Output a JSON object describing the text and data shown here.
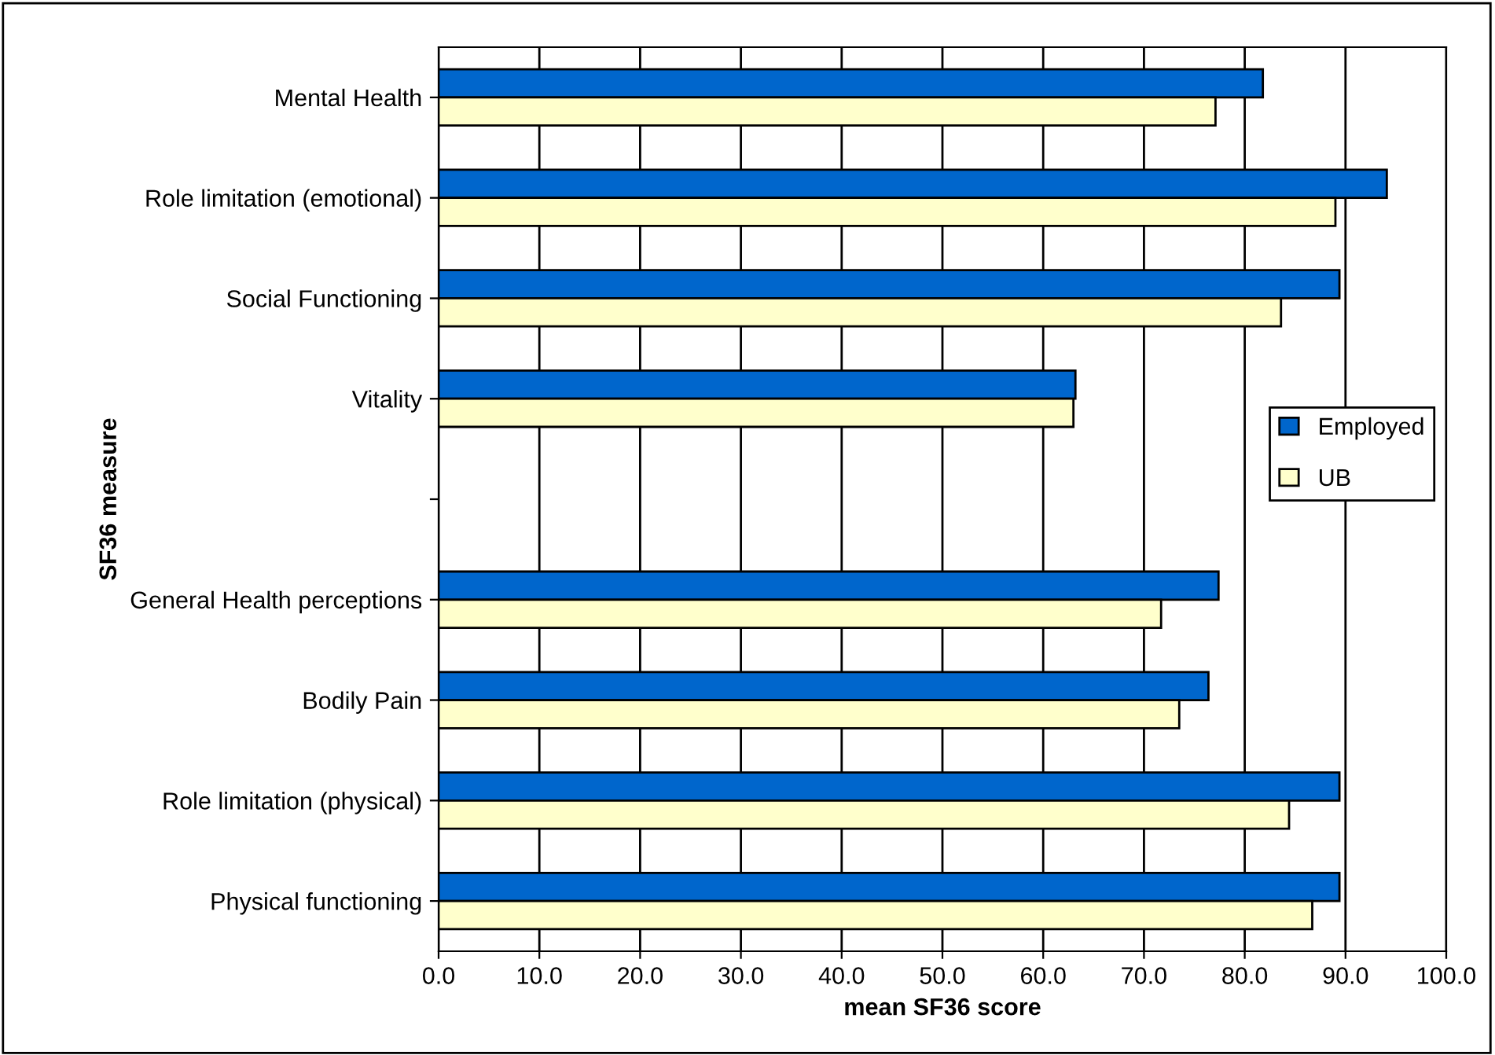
{
  "chart_data": {
    "type": "bar",
    "orientation": "horizontal",
    "xlabel": "mean SF36 score",
    "ylabel": "SF36 measure",
    "categories": [
      "Mental Health",
      "Role limitation (emotional)",
      "Social Functioning",
      "Vitality",
      null,
      "General Health perceptions",
      "Bodily Pain",
      "Role limitation (physical)",
      "Physical functioning"
    ],
    "series": [
      {
        "name": "Employed",
        "color": "#0066cc",
        "values": [
          81.8,
          94.1,
          89.4,
          63.2,
          null,
          77.4,
          76.4,
          89.4,
          89.4
        ]
      },
      {
        "name": "UB",
        "color": "#ffffcc",
        "values": [
          77.1,
          89.0,
          83.6,
          63.0,
          null,
          71.7,
          73.5,
          84.4,
          86.7
        ]
      }
    ],
    "xlim": [
      0,
      100
    ],
    "xticks": [
      {
        "value": 0,
        "label": "0.0"
      },
      {
        "value": 10,
        "label": "10.0"
      },
      {
        "value": 20,
        "label": "20.0"
      },
      {
        "value": 30,
        "label": "30.0"
      },
      {
        "value": 40,
        "label": "40.0"
      },
      {
        "value": 50,
        "label": "50.0"
      },
      {
        "value": 60,
        "label": "60.0"
      },
      {
        "value": 70,
        "label": "70.0"
      },
      {
        "value": 80,
        "label": "80.0"
      },
      {
        "value": 90,
        "label": "90.0"
      },
      {
        "value": 100,
        "label": "100.0"
      }
    ],
    "grid": "x",
    "legend": "right"
  }
}
